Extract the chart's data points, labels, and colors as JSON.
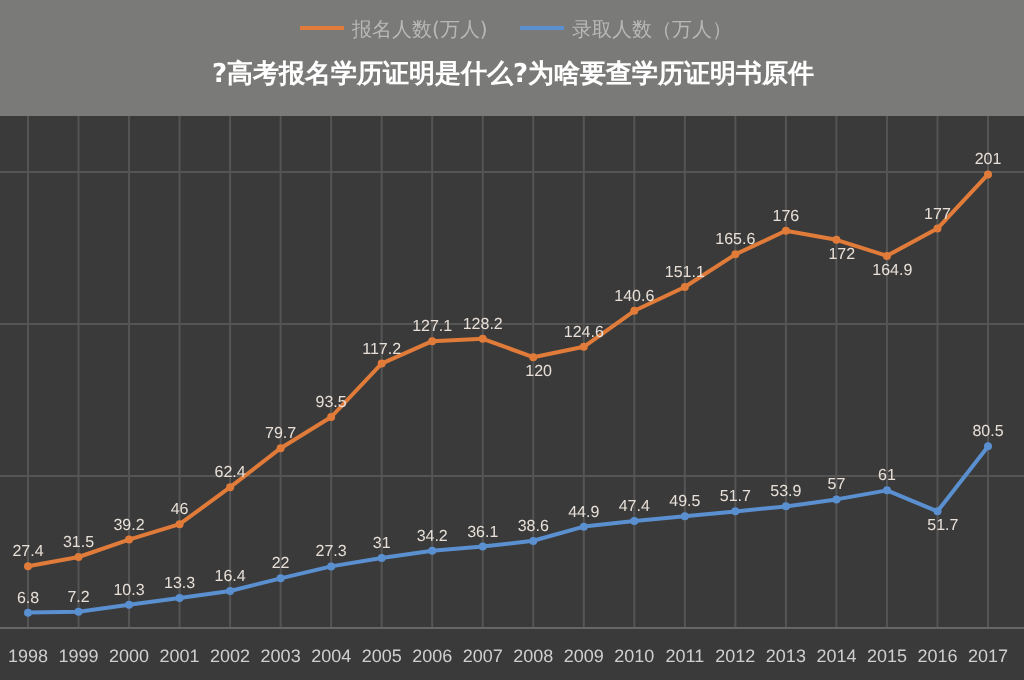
{
  "chart_data": {
    "type": "line",
    "title": "?高考报名学历证明是什么?为啥要查学历证明书原件",
    "categories": [
      "1998",
      "1999",
      "2000",
      "2001",
      "2002",
      "2003",
      "2004",
      "2005",
      "2006",
      "2007",
      "2008",
      "2009",
      "2010",
      "2011",
      "2012",
      "2013",
      "2014",
      "2015",
      "2016",
      "2017"
    ],
    "series": [
      {
        "name": "报名人数(万人)",
        "color": "#e07b39",
        "values": [
          27.4,
          31.5,
          39.2,
          46,
          62.4,
          79.7,
          93.5,
          117.2,
          127.1,
          128.2,
          120,
          124.6,
          140.6,
          151.1,
          165.6,
          176,
          172,
          164.9,
          177,
          201
        ]
      },
      {
        "name": "录取人数（万人）",
        "color": "#5a8fd0",
        "values": [
          6.8,
          7.2,
          10.3,
          13.3,
          16.4,
          22,
          27.3,
          31,
          34.2,
          36.1,
          38.6,
          44.9,
          47.4,
          49.5,
          51.7,
          53.9,
          57,
          61,
          51.7,
          80.5
        ]
      }
    ],
    "data_labels": true,
    "grid": true,
    "legend": "top",
    "marker": "circle",
    "line_style": "solid"
  }
}
